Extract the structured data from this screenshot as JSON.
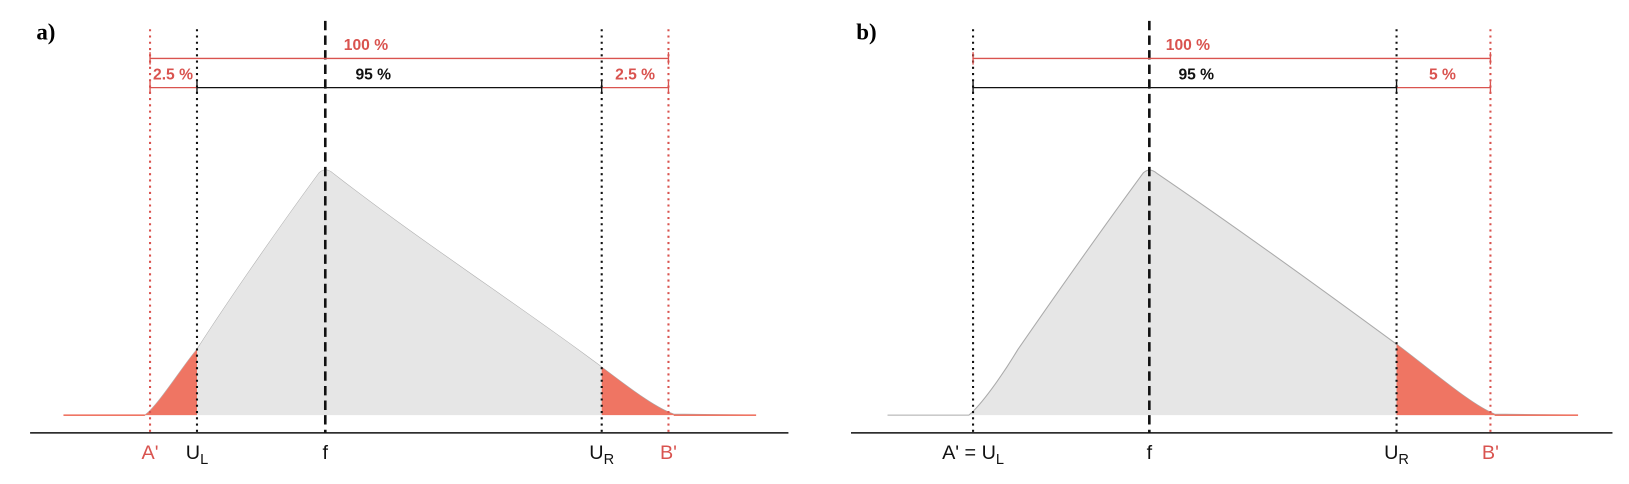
{
  "panels": [
    {
      "label": "a)",
      "total": "100 %",
      "left": "2.5 %",
      "middle": "95 %",
      "right": "2.5 %",
      "a_prime": "A'",
      "u_left": "U",
      "u_left_sub": "L",
      "mode": "f",
      "u_right": "U",
      "u_right_sub": "R",
      "b_prime": "B'"
    },
    {
      "label": "b)",
      "total": "100 %",
      "middle": "95 %",
      "right": "5 %",
      "a_prime_u_left": "A' = U",
      "u_left_sub": "L",
      "mode": "f",
      "u_right": "U",
      "u_right_sub": "R",
      "b_prime": "B'"
    }
  ]
}
